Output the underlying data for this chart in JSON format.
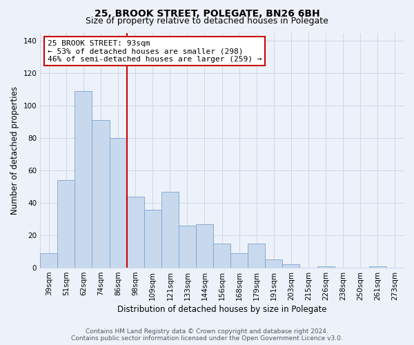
{
  "title": "25, BROOK STREET, POLEGATE, BN26 6BH",
  "subtitle": "Size of property relative to detached houses in Polegate",
  "xlabel": "Distribution of detached houses by size in Polegate",
  "ylabel": "Number of detached properties",
  "bar_labels": [
    "39sqm",
    "51sqm",
    "62sqm",
    "74sqm",
    "86sqm",
    "98sqm",
    "109sqm",
    "121sqm",
    "133sqm",
    "144sqm",
    "156sqm",
    "168sqm",
    "179sqm",
    "191sqm",
    "203sqm",
    "215sqm",
    "226sqm",
    "238sqm",
    "250sqm",
    "261sqm",
    "273sqm"
  ],
  "bar_values": [
    9,
    54,
    109,
    91,
    80,
    44,
    36,
    47,
    26,
    27,
    15,
    9,
    15,
    5,
    2,
    0,
    1,
    0,
    0,
    1,
    0
  ],
  "bar_color": "#c8d9ee",
  "bar_edge_color": "#7aa3cc",
  "vline_x": 4.5,
  "vline_color": "#cc0000",
  "ylim": [
    0,
    145
  ],
  "yticks": [
    0,
    20,
    40,
    60,
    80,
    100,
    120,
    140
  ],
  "annotation_title": "25 BROOK STREET: 93sqm",
  "annotation_line1": "← 53% of detached houses are smaller (298)",
  "annotation_line2": "46% of semi-detached houses are larger (259) →",
  "annotation_box_color": "#ffffff",
  "annotation_box_edge": "#cc0000",
  "footer1": "Contains HM Land Registry data © Crown copyright and database right 2024.",
  "footer2": "Contains public sector information licensed under the Open Government Licence v3.0.",
  "background_color": "#edf2fa",
  "grid_color": "#d0d8e8",
  "title_fontsize": 10,
  "subtitle_fontsize": 9,
  "axis_label_fontsize": 8.5,
  "tick_fontsize": 7.5,
  "annotation_fontsize": 8,
  "footer_fontsize": 6.5
}
